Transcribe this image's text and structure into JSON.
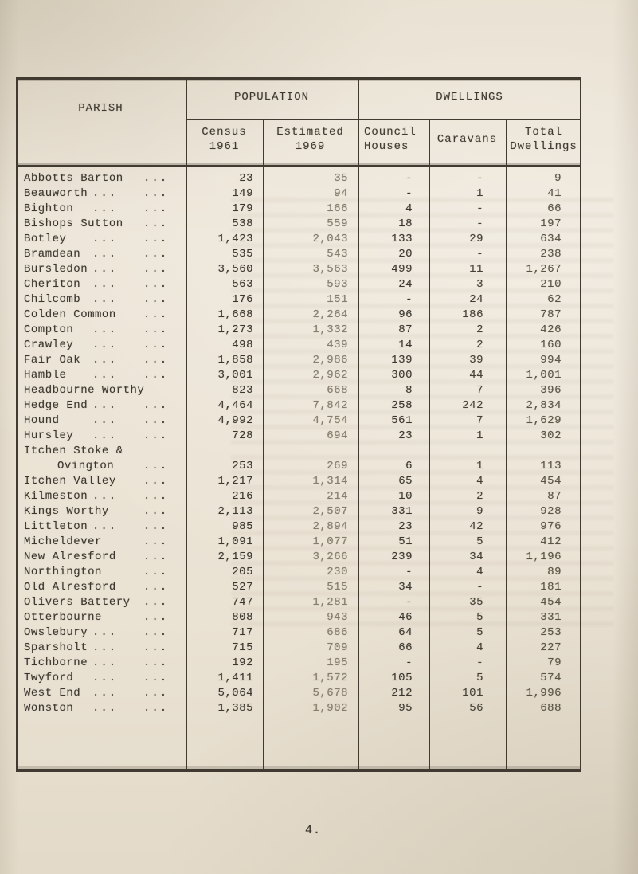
{
  "page": {
    "number": "4."
  },
  "table": {
    "header": {
      "parish": "PARISH",
      "population": "POPULATION",
      "dwellings": "DWELLINGS",
      "census_line1": "Census",
      "census_line2": "1961",
      "estimated_line1": "Estimated",
      "estimated_line2": "1969",
      "council_line1": "Council",
      "council_line2": "Houses",
      "caravans": "Caravans",
      "total_line1": "Total",
      "total_line2": "Dwellings"
    },
    "rows": [
      {
        "name": "Abbotts Barton",
        "leader1": "",
        "leader2": "...",
        "census": "23",
        "estimated": "35",
        "council": "-",
        "caravans": "-",
        "total": "9"
      },
      {
        "name": "Beauworth",
        "leader1": "...",
        "leader2": "...",
        "census": "149",
        "estimated": "94",
        "council": "-",
        "caravans": "1",
        "total": "41"
      },
      {
        "name": "Bighton",
        "leader1": "...",
        "leader2": "...",
        "census": "179",
        "estimated": "166",
        "council": "4",
        "caravans": "-",
        "total": "66"
      },
      {
        "name": "Bishops Sutton",
        "leader1": "",
        "leader2": "...",
        "census": "538",
        "estimated": "559",
        "council": "18",
        "caravans": "-",
        "total": "197"
      },
      {
        "name": "Botley",
        "leader1": "...",
        "leader2": "...",
        "census": "1,423",
        "estimated": "2,043",
        "council": "133",
        "caravans": "29",
        "total": "634"
      },
      {
        "name": "Bramdean",
        "leader1": "...",
        "leader2": "...",
        "census": "535",
        "estimated": "543",
        "council": "20",
        "caravans": "-",
        "total": "238"
      },
      {
        "name": "Bursledon",
        "leader1": "...",
        "leader2": "...",
        "census": "3,560",
        "estimated": "3,563",
        "council": "499",
        "caravans": "11",
        "total": "1,267"
      },
      {
        "name": "Cheriton",
        "leader1": "...",
        "leader2": "...",
        "census": "563",
        "estimated": "593",
        "council": "24",
        "caravans": "3",
        "total": "210"
      },
      {
        "name": "Chilcomb",
        "leader1": "...",
        "leader2": "...",
        "census": "176",
        "estimated": "151",
        "council": "-",
        "caravans": "24",
        "total": "62"
      },
      {
        "name": "Colden Common",
        "leader1": "",
        "leader2": "...",
        "census": "1,668",
        "estimated": "2,264",
        "council": "96",
        "caravans": "186",
        "total": "787"
      },
      {
        "name": "Compton",
        "leader1": "...",
        "leader2": "...",
        "census": "1,273",
        "estimated": "1,332",
        "council": "87",
        "caravans": "2",
        "total": "426"
      },
      {
        "name": "Crawley",
        "leader1": "...",
        "leader2": "...",
        "census": "498",
        "estimated": "439",
        "council": "14",
        "caravans": "2",
        "total": "160"
      },
      {
        "name": "Fair Oak",
        "leader1": "...",
        "leader2": "...",
        "census": "1,858",
        "estimated": "2,986",
        "council": "139",
        "caravans": "39",
        "total": "994"
      },
      {
        "name": "Hamble",
        "leader1": "...",
        "leader2": "...",
        "census": "3,001",
        "estimated": "2,962",
        "council": "300",
        "caravans": "44",
        "total": "1,001"
      },
      {
        "name": "Headbourne Worthy",
        "leader1": "",
        "leader2": "",
        "census": "823",
        "estimated": "668",
        "council": "8",
        "caravans": "7",
        "total": "396"
      },
      {
        "name": "Hedge End",
        "leader1": "...",
        "leader2": "...",
        "census": "4,464",
        "estimated": "7,842",
        "council": "258",
        "caravans": "242",
        "total": "2,834"
      },
      {
        "name": "Hound",
        "leader1": "...",
        "leader2": "...",
        "census": "4,992",
        "estimated": "4,754",
        "council": "561",
        "caravans": "7",
        "total": "1,629"
      },
      {
        "name": "Hursley",
        "leader1": "...",
        "leader2": "...",
        "census": "728",
        "estimated": "694",
        "council": "23",
        "caravans": "1",
        "total": "302"
      },
      {
        "name": "Itchen Stoke &",
        "name2": "Ovington",
        "leader1": "",
        "leader2": "",
        "leader2b": "...",
        "census": "253",
        "estimated": "269",
        "council": "6",
        "caravans": "1",
        "total": "113"
      },
      {
        "name": "Itchen Valley",
        "leader1": "",
        "leader2": "...",
        "census": "1,217",
        "estimated": "1,314",
        "council": "65",
        "caravans": "4",
        "total": "454"
      },
      {
        "name": "Kilmeston",
        "leader1": "...",
        "leader2": "...",
        "census": "216",
        "estimated": "214",
        "council": "10",
        "caravans": "2",
        "total": "87"
      },
      {
        "name": "Kings Worthy",
        "leader1": "",
        "leader2": "...",
        "census": "2,113",
        "estimated": "2,507",
        "council": "331",
        "caravans": "9",
        "total": "928"
      },
      {
        "name": "Littleton",
        "leader1": "...",
        "leader2": "...",
        "census": "985",
        "estimated": "2,894",
        "council": "23",
        "caravans": "42",
        "total": "976"
      },
      {
        "name": "Micheldever",
        "leader1": "",
        "leader2": "...",
        "census": "1,091",
        "estimated": "1,077",
        "council": "51",
        "caravans": "5",
        "total": "412"
      },
      {
        "name": "New Alresford",
        "leader1": "",
        "leader2": "...",
        "census": "2,159",
        "estimated": "3,266",
        "council": "239",
        "caravans": "34",
        "total": "1,196"
      },
      {
        "name": "Northington",
        "leader1": "",
        "leader2": "...",
        "census": "205",
        "estimated": "230",
        "council": "-",
        "caravans": "4",
        "total": "89"
      },
      {
        "name": "Old Alresford",
        "leader1": "",
        "leader2": "...",
        "census": "527",
        "estimated": "515",
        "council": "34",
        "caravans": "-",
        "total": "181"
      },
      {
        "name": "Olivers Battery",
        "leader1": "",
        "leader2": "...",
        "census": "747",
        "estimated": "1,281",
        "council": "-",
        "caravans": "35",
        "total": "454"
      },
      {
        "name": "Otterbourne",
        "leader1": "",
        "leader2": "...",
        "census": "808",
        "estimated": "943",
        "council": "46",
        "caravans": "5",
        "total": "331"
      },
      {
        "name": "Owslebury",
        "leader1": "...",
        "leader2": "...",
        "census": "717",
        "estimated": "686",
        "council": "64",
        "caravans": "5",
        "total": "253"
      },
      {
        "name": "Sparsholt",
        "leader1": "...",
        "leader2": "...",
        "census": "715",
        "estimated": "709",
        "council": "66",
        "caravans": "4",
        "total": "227"
      },
      {
        "name": "Tichborne",
        "leader1": "...",
        "leader2": "...",
        "census": "192",
        "estimated": "195",
        "council": "-",
        "caravans": "-",
        "total": "79"
      },
      {
        "name": "Twyford",
        "leader1": "...",
        "leader2": "...",
        "census": "1,411",
        "estimated": "1,572",
        "council": "105",
        "caravans": "5",
        "total": "574"
      },
      {
        "name": "West End",
        "leader1": "...",
        "leader2": "...",
        "census": "5,064",
        "estimated": "5,678",
        "council": "212",
        "caravans": "101",
        "total": "1,996"
      },
      {
        "name": "Wonston",
        "leader1": "...",
        "leader2": "...",
        "census": "1,385",
        "estimated": "1,902",
        "council": "95",
        "caravans": "56",
        "total": "688"
      }
    ]
  }
}
